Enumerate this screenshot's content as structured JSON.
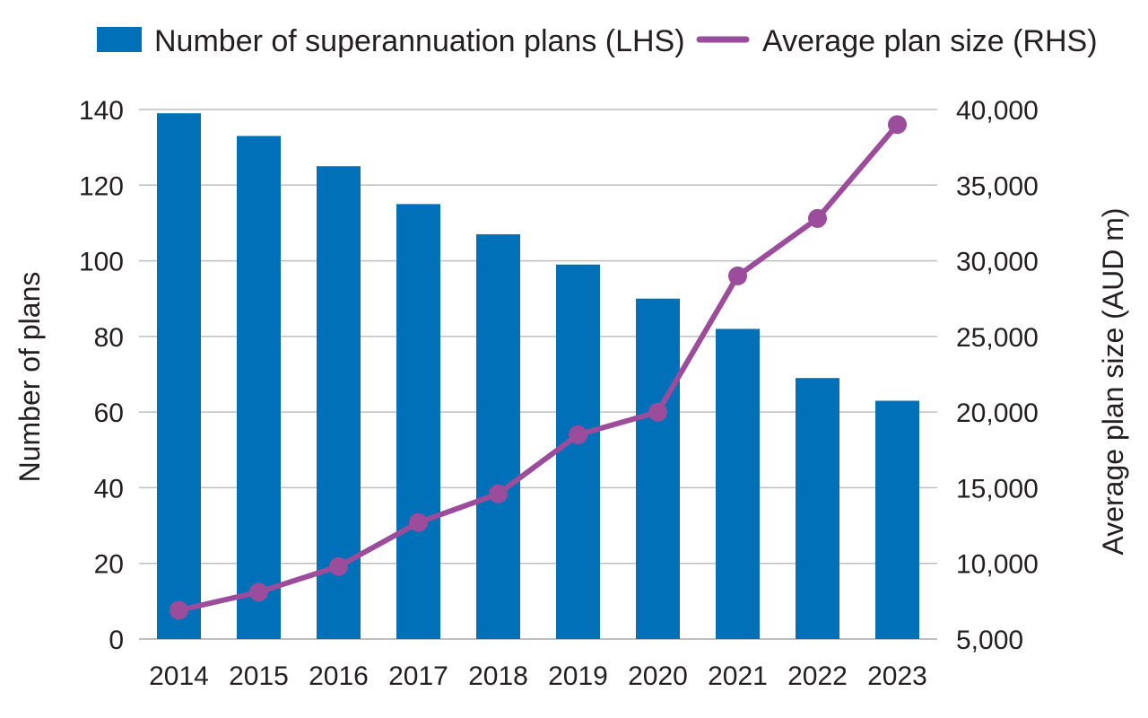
{
  "chart_data": {
    "type": "bar",
    "categories": [
      "2014",
      "2015",
      "2016",
      "2017",
      "2018",
      "2019",
      "2020",
      "2021",
      "2022",
      "2023"
    ],
    "series": [
      {
        "name": "Number of superannuation plans (LHS)",
        "type": "bar",
        "axis": "left",
        "values": [
          139,
          133,
          125,
          115,
          107,
          99,
          90,
          82,
          69,
          63
        ]
      },
      {
        "name": "Average plan size (RHS)",
        "type": "line",
        "axis": "right",
        "values": [
          6900,
          8100,
          9800,
          12700,
          14600,
          18500,
          20000,
          29000,
          32800,
          39000
        ]
      }
    ],
    "ylabel": "Number of plans",
    "y2label": "Average plan size (AUD m)",
    "ylim": [
      0,
      140
    ],
    "y2lim": [
      5000,
      40000
    ],
    "yticks": [
      "0",
      "20",
      "40",
      "60",
      "80",
      "100",
      "120",
      "140"
    ],
    "y2ticks": [
      "5,000",
      "10,000",
      "15,000",
      "20,000",
      "25,000",
      "30,000",
      "35,000",
      "40,000"
    ],
    "grid": true,
    "legend_position": "top",
    "colors": {
      "bar": "#0070b8",
      "line": "#9b4c9b",
      "grid": "#bfbfbf"
    }
  }
}
